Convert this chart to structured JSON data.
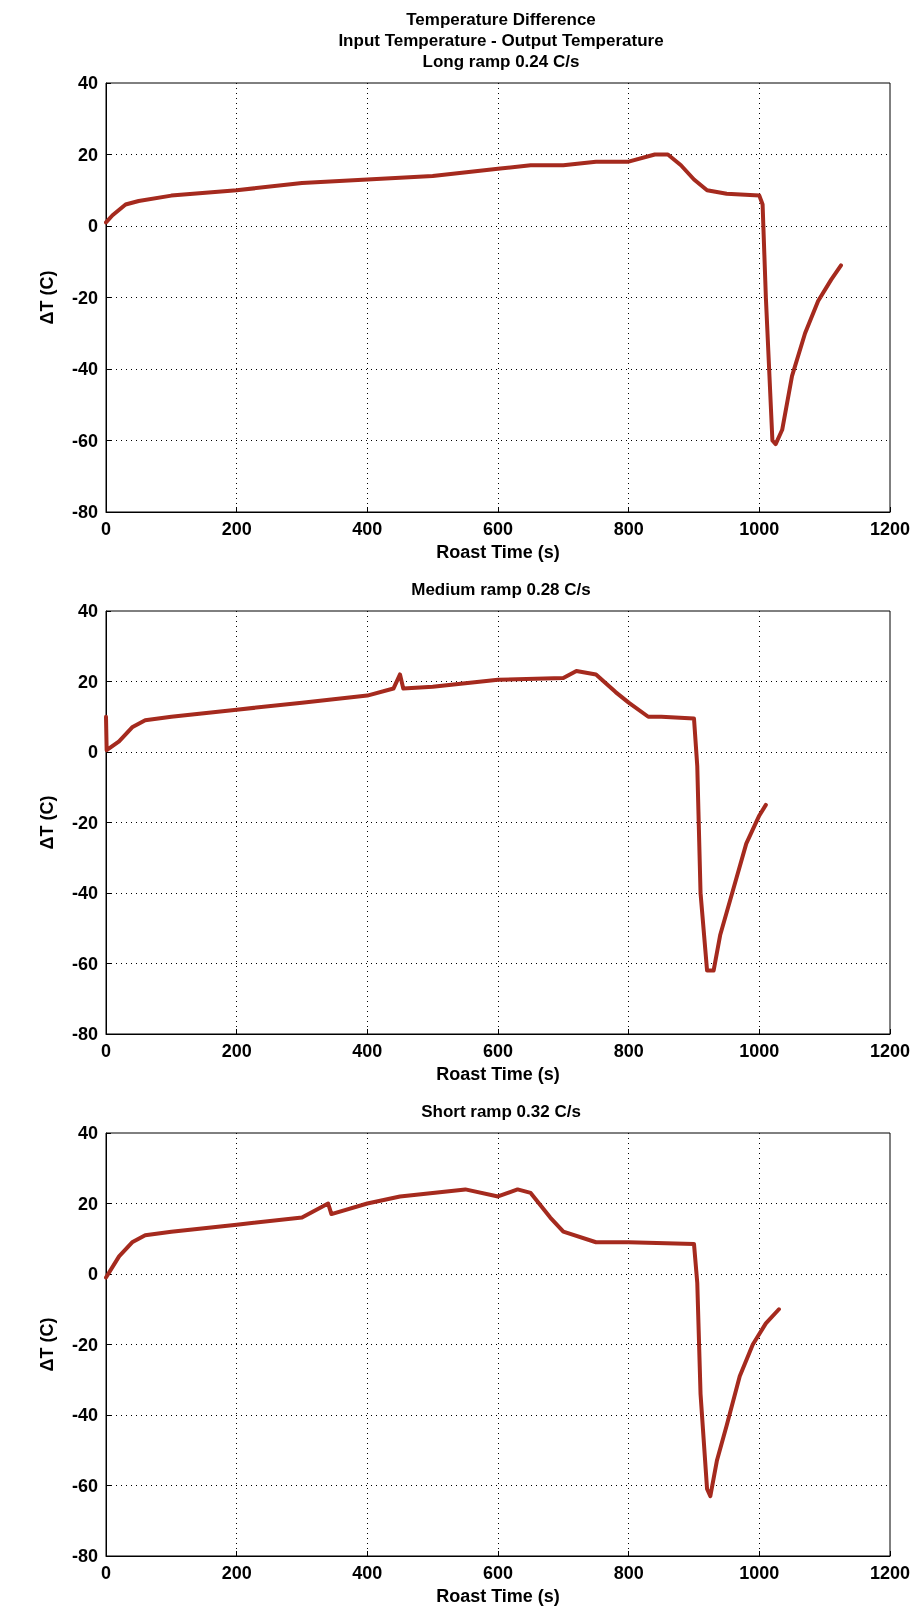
{
  "chart_data": [
    {
      "type": "line",
      "title": "Temperature Difference\nInput Temperature - Output Temperature\nLong ramp 0.24 C/s",
      "xlabel": "Roast Time (s)",
      "ylabel": "ΔT (C)",
      "xlim": [
        0,
        1200
      ],
      "xticks": [
        0,
        200,
        400,
        600,
        800,
        1000,
        1200
      ],
      "ylim": [
        -80,
        40
      ],
      "yticks": [
        -80,
        -60,
        -40,
        -20,
        0,
        20,
        40
      ],
      "grid": true,
      "marker": "none",
      "line_style": "solid",
      "series": [
        {
          "color": "#a52a1e",
          "x": [
            0,
            10,
            30,
            50,
            100,
            200,
            300,
            400,
            500,
            600,
            650,
            700,
            750,
            800,
            840,
            860,
            880,
            900,
            920,
            950,
            1000,
            1005,
            1010,
            1020,
            1025,
            1035,
            1050,
            1070,
            1090,
            1110,
            1125
          ],
          "values": [
            1,
            3,
            6,
            7,
            8.5,
            10,
            12,
            13,
            14,
            16,
            17,
            17,
            18,
            18,
            20,
            20,
            17,
            13,
            10,
            9,
            8.5,
            6,
            -20,
            -60,
            -61,
            -57,
            -42,
            -30,
            -21,
            -15,
            -11
          ]
        }
      ]
    },
    {
      "type": "line",
      "title": "Medium ramp 0.28 C/s",
      "xlabel": "Roast Time (s)",
      "ylabel": "ΔT (C)",
      "xlim": [
        0,
        1200
      ],
      "xticks": [
        0,
        200,
        400,
        600,
        800,
        1000,
        1200
      ],
      "ylim": [
        -80,
        40
      ],
      "yticks": [
        -80,
        -60,
        -40,
        -20,
        0,
        20,
        40
      ],
      "grid": true,
      "marker": "none",
      "line_style": "solid",
      "series": [
        {
          "color": "#a52a1e",
          "x": [
            0,
            1,
            20,
            40,
            60,
            100,
            200,
            300,
            400,
            440,
            450,
            455,
            500,
            600,
            700,
            720,
            750,
            780,
            800,
            830,
            850,
            900,
            905,
            910,
            920,
            930,
            940,
            960,
            980,
            1000,
            1010
          ],
          "values": [
            10,
            0.5,
            3,
            7,
            9,
            10,
            12,
            14,
            16,
            18,
            22,
            18,
            18.5,
            20.5,
            21,
            23,
            22,
            17,
            14,
            10,
            10,
            9.5,
            -4,
            -40,
            -62,
            -62,
            -52,
            -39,
            -26,
            -18,
            -15
          ]
        }
      ]
    },
    {
      "type": "line",
      "title": "Short ramp 0.32 C/s",
      "xlabel": "Roast Time (s)",
      "ylabel": "ΔT (C)",
      "xlim": [
        0,
        1200
      ],
      "xticks": [
        0,
        200,
        400,
        600,
        800,
        1000,
        1200
      ],
      "ylim": [
        -80,
        40
      ],
      "yticks": [
        -80,
        -60,
        -40,
        -20,
        0,
        20,
        40
      ],
      "grid": true,
      "marker": "none",
      "line_style": "solid",
      "series": [
        {
          "color": "#a52a1e",
          "x": [
            0,
            20,
            40,
            60,
            100,
            200,
            300,
            340,
            345,
            400,
            450,
            500,
            550,
            600,
            630,
            650,
            680,
            700,
            750,
            800,
            900,
            905,
            910,
            920,
            925,
            935,
            950,
            970,
            990,
            1010,
            1030
          ],
          "values": [
            -1,
            5,
            9,
            11,
            12,
            14,
            16,
            20,
            17,
            20,
            22,
            23,
            24,
            22,
            24,
            23,
            16,
            12,
            9,
            9,
            8.5,
            -2.5,
            -34,
            -61,
            -63,
            -53,
            -43,
            -29,
            -20,
            -14,
            -10
          ]
        }
      ]
    }
  ]
}
